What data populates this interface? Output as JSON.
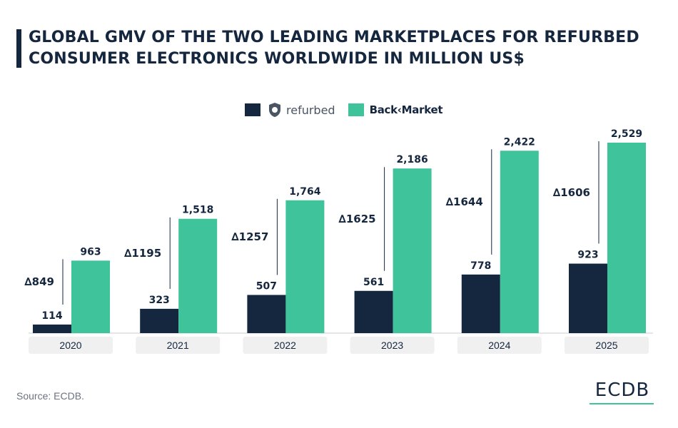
{
  "title": "GLOBAL GMV OF THE TWO LEADING MARKETPLACES FOR REFURBED CONSUMER ELECTRONICS WORLDWIDE IN MILLION US$",
  "source": "Source: ECDB.",
  "brand": "ECDB",
  "colors": {
    "refurbed": "#15263f",
    "backmarket": "#3fc39b",
    "axis_label_bg": "#f0f0f0"
  },
  "legend": [
    {
      "label": "refurbed",
      "icon": "refurbed-logo-icon"
    },
    {
      "label": "Back‹Market"
    }
  ],
  "chart_data": {
    "type": "bar",
    "categories": [
      "2020",
      "2021",
      "2022",
      "2023",
      "2024",
      "2025"
    ],
    "series": [
      {
        "name": "refurbed",
        "values": [
          114,
          323,
          507,
          561,
          778,
          923
        ],
        "labels": [
          "114",
          "323",
          "507",
          "561",
          "778",
          "923"
        ]
      },
      {
        "name": "Back‹Market",
        "values": [
          963,
          1518,
          1764,
          2186,
          2422,
          2529
        ],
        "labels": [
          "963",
          "1,518",
          "1,764",
          "2,186",
          "2,422",
          "2,529"
        ]
      }
    ],
    "deltas": [
      "849",
      "1195",
      "1257",
      "1625",
      "1644",
      "1606"
    ],
    "delta_symbol": "∆",
    "ylim": [
      0,
      2529
    ]
  }
}
